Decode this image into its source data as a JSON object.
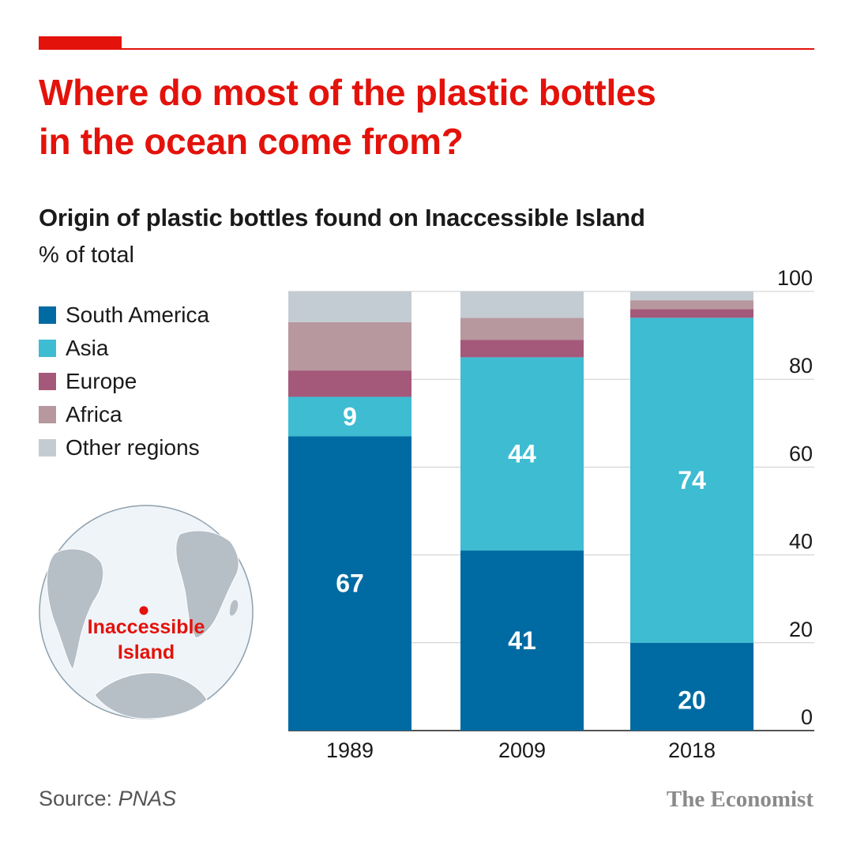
{
  "headline": {
    "line1": "Where do most of the plastic bottles",
    "line2": "in the ocean come from?"
  },
  "subtitle": "Origin of plastic bottles found on Inaccessible Island",
  "unit": "% of total",
  "map_label": {
    "line1": "Inaccessible",
    "line2": "Island"
  },
  "source": {
    "prefix": "Source: ",
    "name": "PNAS"
  },
  "brand": "The Economist",
  "colors": {
    "accent": "#e3120b",
    "south_america": "#006ba2",
    "asia": "#3ebcd2",
    "europe": "#a4597a",
    "africa": "#b7989e",
    "other": "#c4ccd3",
    "grid": "#cccccc",
    "globe_fill": "#eef4f8",
    "land": "#b6bec6"
  },
  "chart_data": {
    "type": "bar",
    "stacked": true,
    "categories": [
      "1989",
      "2009",
      "2018"
    ],
    "series": [
      {
        "name": "South America",
        "values": [
          67,
          41,
          20
        ],
        "color": "#006ba2"
      },
      {
        "name": "Asia",
        "values": [
          9,
          44,
          74
        ],
        "color": "#3ebcd2"
      },
      {
        "name": "Europe",
        "values": [
          6,
          4,
          2
        ],
        "color": "#a4597a"
      },
      {
        "name": "Africa",
        "values": [
          11,
          5,
          2
        ],
        "color": "#b7989e"
      },
      {
        "name": "Other regions",
        "values": [
          7,
          6,
          2
        ],
        "color": "#c4ccd3"
      }
    ],
    "data_labels": [
      {
        "series": "South America",
        "category": "1989",
        "text": "67"
      },
      {
        "series": "Asia",
        "category": "1989",
        "text": "9"
      },
      {
        "series": "South America",
        "category": "2009",
        "text": "41"
      },
      {
        "series": "Asia",
        "category": "2009",
        "text": "44"
      },
      {
        "series": "South America",
        "category": "2018",
        "text": "20"
      },
      {
        "series": "Asia",
        "category": "2018",
        "text": "74"
      }
    ],
    "ylim": [
      0,
      100
    ],
    "yticks": [
      0,
      20,
      40,
      60,
      80,
      100
    ],
    "y_axis_side": "right",
    "grid": true,
    "legend_position": "left"
  }
}
